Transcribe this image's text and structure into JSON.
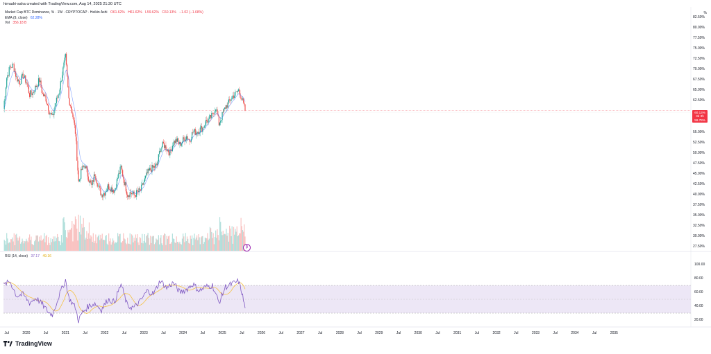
{
  "header": {
    "text": "himadri-saha created with TradingView.com, Aug 14, 2025 21:30 UTC"
  },
  "legend": {
    "symbol": "Market Cap BTC Dominance, % · 1W · CRYPTOCAP · Heikin Ashi",
    "open": "O61.62%",
    "high": "H61.62%",
    "low": "L59.62%",
    "close": "C60.13%",
    "change": "−1.02 (−1.68%)",
    "ema_label": "EMA (9, close)",
    "ema_value": "62.28%",
    "vol_label": "Vol",
    "vol_value": "356.18 B"
  },
  "rsi": {
    "label": "RSI (14, close)",
    "value": "37.17",
    "ma_value": "49.16"
  },
  "price_axis": {
    "unit": "%",
    "labels": [
      "82.50%",
      "80.00%",
      "77.50%",
      "75.00%",
      "72.50%",
      "70.00%",
      "67.50%",
      "65.00%",
      "62.50%",
      "57.50%",
      "55.00%",
      "52.50%",
      "50.00%",
      "47.50%",
      "45.00%",
      "42.50%",
      "40.00%",
      "37.50%",
      "35.00%",
      "32.50%",
      "30.00%",
      "27.50%"
    ],
    "current_tag": [
      "60.13%",
      "3d 3h",
      "59.78%"
    ]
  },
  "rsi_axis": {
    "labels": [
      "100.00",
      "80.00",
      "60.00",
      "40.00",
      "20.00"
    ]
  },
  "time_axis": {
    "labels": [
      "Jul",
      "2020",
      "Jul",
      "2021",
      "Jul",
      "2022",
      "Jul",
      "2023",
      "Jul",
      "2024",
      "Jul",
      "2025",
      "Jul",
      "2026",
      "Jul",
      "2027",
      "Jul",
      "2028",
      "Jul",
      "2029",
      "Jul",
      "2030",
      "Jul",
      "2031",
      "Jul",
      "2032",
      "Jul",
      "2033",
      "Jul",
      "2034",
      "Jul",
      "2035"
    ]
  },
  "footer": {
    "brand": "TradingView"
  },
  "marker": {
    "symbol": "₿"
  },
  "colors": {
    "up": "#26a69a",
    "down": "#ef5350",
    "ema": "#2962ff",
    "rsi": "#7e57c2",
    "rsi_ma": "#f5c242",
    "rsi_band": "#ede7f6",
    "price_tag": "#f23645"
  },
  "chart_data": {
    "type": "candlestick",
    "title": "Market Cap BTC Dominance, %",
    "interval": "1W",
    "price_range": [
      25.5,
      85
    ],
    "price_series": [
      {
        "date": "2019-06",
        "value": 60.5
      },
      {
        "date": "2019-07",
        "value": 68
      },
      {
        "date": "2019-08",
        "value": 70.5
      },
      {
        "date": "2019-09",
        "value": 71
      },
      {
        "date": "2019-10",
        "value": 68
      },
      {
        "date": "2019-11",
        "value": 67
      },
      {
        "date": "2019-12",
        "value": 68.5
      },
      {
        "date": "2020-01",
        "value": 67
      },
      {
        "date": "2020-02",
        "value": 64
      },
      {
        "date": "2020-03",
        "value": 64.5
      },
      {
        "date": "2020-04",
        "value": 66
      },
      {
        "date": "2020-05",
        "value": 67.5
      },
      {
        "date": "2020-06",
        "value": 64
      },
      {
        "date": "2020-07",
        "value": 63
      },
      {
        "date": "2020-08",
        "value": 60
      },
      {
        "date": "2020-09",
        "value": 58.5
      },
      {
        "date": "2020-10",
        "value": 62
      },
      {
        "date": "2020-11",
        "value": 64.5
      },
      {
        "date": "2020-12",
        "value": 69
      },
      {
        "date": "2021-01",
        "value": 73
      },
      {
        "date": "2021-02",
        "value": 63
      },
      {
        "date": "2021-03",
        "value": 60
      },
      {
        "date": "2021-04",
        "value": 55
      },
      {
        "date": "2021-05",
        "value": 43
      },
      {
        "date": "2021-06",
        "value": 46
      },
      {
        "date": "2021-07",
        "value": 47
      },
      {
        "date": "2021-08",
        "value": 44
      },
      {
        "date": "2021-09",
        "value": 42
      },
      {
        "date": "2021-10",
        "value": 45
      },
      {
        "date": "2021-11",
        "value": 42
      },
      {
        "date": "2021-12",
        "value": 40
      },
      {
        "date": "2022-01",
        "value": 40.5
      },
      {
        "date": "2022-02",
        "value": 42
      },
      {
        "date": "2022-03",
        "value": 41.5
      },
      {
        "date": "2022-04",
        "value": 41
      },
      {
        "date": "2022-05",
        "value": 44
      },
      {
        "date": "2022-06",
        "value": 46.5
      },
      {
        "date": "2022-07",
        "value": 43
      },
      {
        "date": "2022-08",
        "value": 40
      },
      {
        "date": "2022-09",
        "value": 40.5
      },
      {
        "date": "2022-10",
        "value": 39.8
      },
      {
        "date": "2022-11",
        "value": 40.5
      },
      {
        "date": "2022-12",
        "value": 41
      },
      {
        "date": "2023-01",
        "value": 43
      },
      {
        "date": "2023-02",
        "value": 45
      },
      {
        "date": "2023-03",
        "value": 46
      },
      {
        "date": "2023-04",
        "value": 46.5
      },
      {
        "date": "2023-05",
        "value": 47
      },
      {
        "date": "2023-06",
        "value": 51
      },
      {
        "date": "2023-07",
        "value": 52
      },
      {
        "date": "2023-08",
        "value": 51
      },
      {
        "date": "2023-09",
        "value": 50
      },
      {
        "date": "2023-10",
        "value": 52.5
      },
      {
        "date": "2023-11",
        "value": 53
      },
      {
        "date": "2023-12",
        "value": 52
      },
      {
        "date": "2024-01",
        "value": 53
      },
      {
        "date": "2024-02",
        "value": 54
      },
      {
        "date": "2024-03",
        "value": 53
      },
      {
        "date": "2024-04",
        "value": 55
      },
      {
        "date": "2024-05",
        "value": 55
      },
      {
        "date": "2024-06",
        "value": 55.5
      },
      {
        "date": "2024-07",
        "value": 56
      },
      {
        "date": "2024-08",
        "value": 57.5
      },
      {
        "date": "2024-09",
        "value": 58
      },
      {
        "date": "2024-10",
        "value": 59
      },
      {
        "date": "2024-11",
        "value": 61
      },
      {
        "date": "2024-12",
        "value": 57
      },
      {
        "date": "2025-01",
        "value": 59
      },
      {
        "date": "2025-02",
        "value": 61
      },
      {
        "date": "2025-03",
        "value": 62
      },
      {
        "date": "2025-04",
        "value": 63.5
      },
      {
        "date": "2025-05",
        "value": 64
      },
      {
        "date": "2025-06",
        "value": 65
      },
      {
        "date": "2025-07",
        "value": 63
      },
      {
        "date": "2025-08",
        "value": 60.13
      }
    ],
    "rsi_range": [
      10,
      110
    ],
    "rsi_band": [
      30,
      70
    ],
    "rsi_series": [
      {
        "date": "2019-06",
        "value": 70
      },
      {
        "date": "2019-08",
        "value": 76
      },
      {
        "date": "2019-10",
        "value": 55
      },
      {
        "date": "2019-12",
        "value": 57
      },
      {
        "date": "2020-02",
        "value": 45
      },
      {
        "date": "2020-04",
        "value": 52
      },
      {
        "date": "2020-06",
        "value": 42
      },
      {
        "date": "2020-08",
        "value": 30
      },
      {
        "date": "2020-09",
        "value": 28
      },
      {
        "date": "2020-11",
        "value": 55
      },
      {
        "date": "2021-01",
        "value": 78
      },
      {
        "date": "2021-02",
        "value": 52
      },
      {
        "date": "2021-04",
        "value": 38
      },
      {
        "date": "2021-05",
        "value": 19
      },
      {
        "date": "2021-06",
        "value": 30
      },
      {
        "date": "2021-08",
        "value": 40
      },
      {
        "date": "2021-10",
        "value": 44
      },
      {
        "date": "2021-12",
        "value": 35
      },
      {
        "date": "2022-02",
        "value": 50
      },
      {
        "date": "2022-04",
        "value": 46
      },
      {
        "date": "2022-06",
        "value": 72
      },
      {
        "date": "2022-08",
        "value": 40
      },
      {
        "date": "2022-10",
        "value": 38
      },
      {
        "date": "2022-12",
        "value": 48
      },
      {
        "date": "2023-02",
        "value": 62
      },
      {
        "date": "2023-04",
        "value": 58
      },
      {
        "date": "2023-06",
        "value": 77
      },
      {
        "date": "2023-08",
        "value": 66
      },
      {
        "date": "2023-10",
        "value": 74
      },
      {
        "date": "2023-12",
        "value": 60
      },
      {
        "date": "2024-02",
        "value": 64
      },
      {
        "date": "2024-04",
        "value": 72
      },
      {
        "date": "2024-06",
        "value": 62
      },
      {
        "date": "2024-08",
        "value": 68
      },
      {
        "date": "2024-10",
        "value": 70
      },
      {
        "date": "2024-12",
        "value": 45
      },
      {
        "date": "2025-02",
        "value": 68
      },
      {
        "date": "2025-04",
        "value": 72
      },
      {
        "date": "2025-06",
        "value": 76
      },
      {
        "date": "2025-07",
        "value": 60
      },
      {
        "date": "2025-08",
        "value": 37.17
      }
    ]
  }
}
